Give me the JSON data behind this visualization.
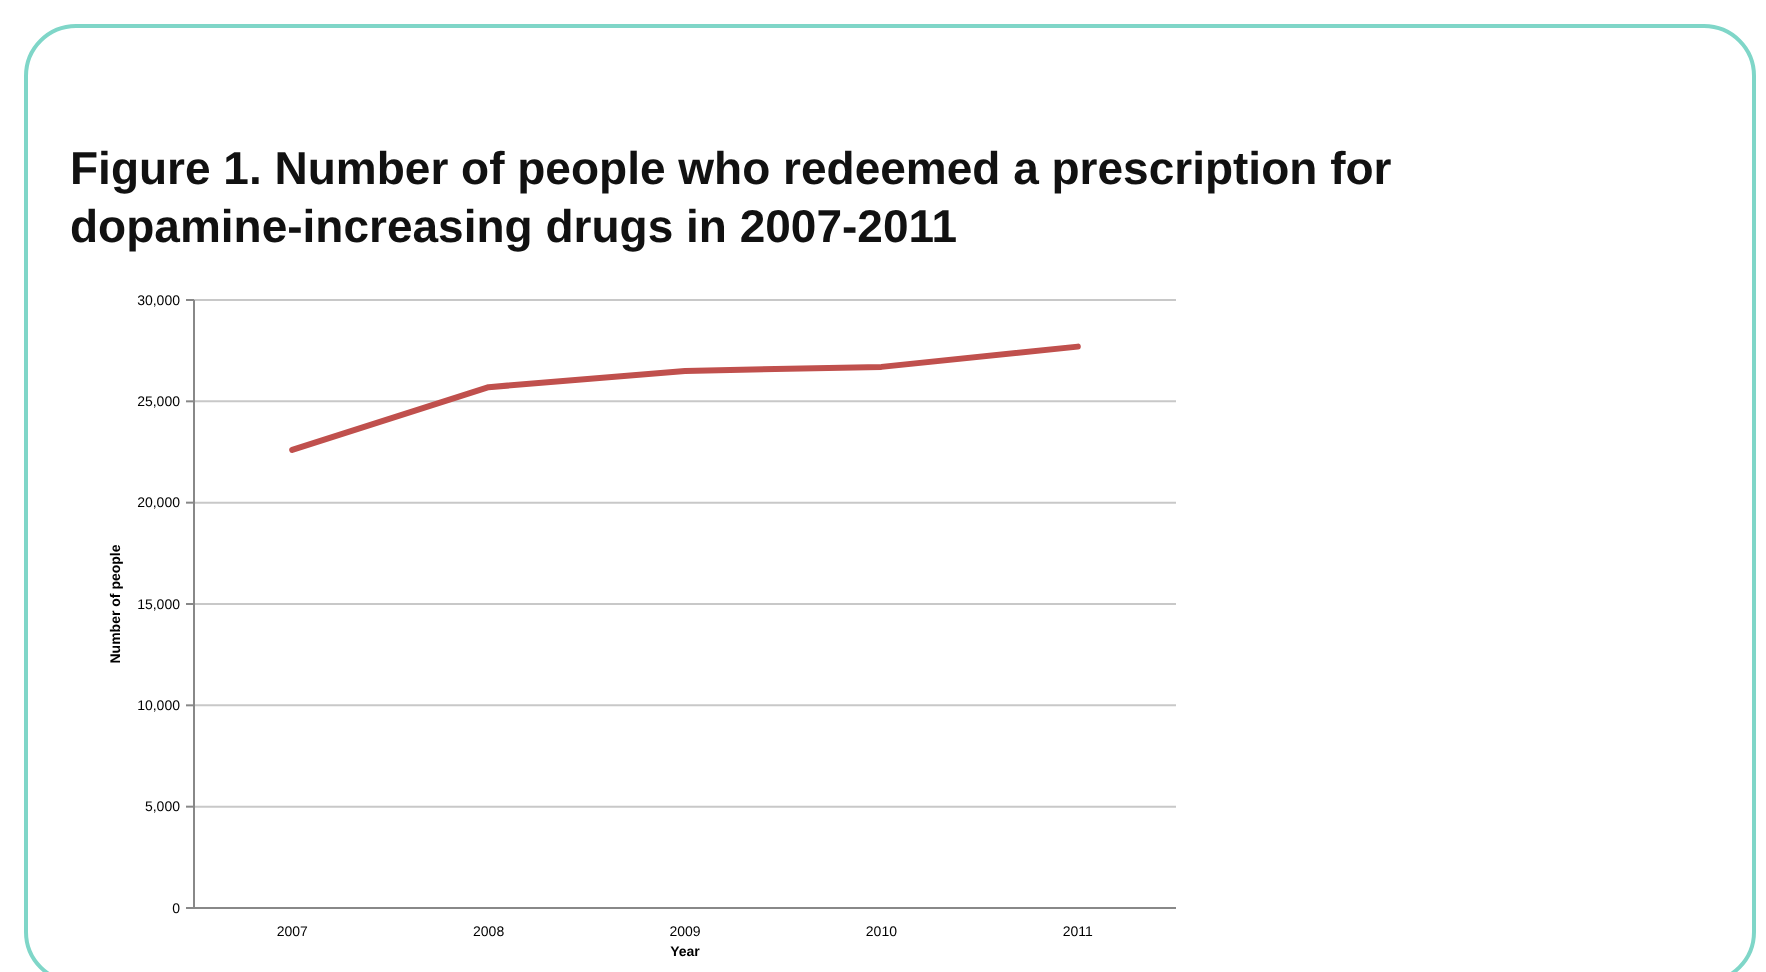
{
  "chart_data": {
    "type": "line",
    "title": "Figure 1.  Number of people who redeemed a prescription for dopamine-increasing drugs in 2007-2011",
    "xlabel": "Year",
    "ylabel": "Number of people",
    "categories": [
      "2007",
      "2008",
      "2009",
      "2010",
      "2011"
    ],
    "series": [
      {
        "color": "#c0504d",
        "values": [
          22600,
          25700,
          26500,
          26700,
          27700
        ]
      }
    ],
    "ylim": [
      0,
      30000
    ],
    "yticks": [
      0,
      {
        "value": 5000,
        "label": "5,000"
      },
      {
        "value": 10000,
        "label": "10,000"
      },
      {
        "value": 15000,
        "label": "15,000"
      },
      {
        "value": 20000,
        "label": "20,000"
      },
      {
        "value": 25000,
        "label": "25,000"
      },
      {
        "value": 30000,
        "label": "30,000"
      }
    ],
    "grid": "y",
    "marker": "none",
    "line_style": "solid"
  }
}
